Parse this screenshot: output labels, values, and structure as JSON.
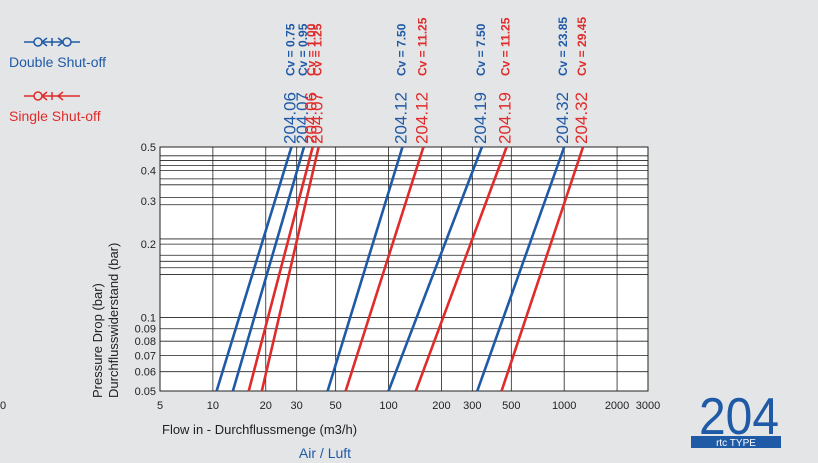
{
  "legend": {
    "double": {
      "label": "Double Shut-off",
      "color": "#1f5aa6",
      "icon": "double-shutoff-valve-icon"
    },
    "single": {
      "label": "Single Shut-off",
      "color": "#e02b2b",
      "icon": "single-shutoff-valve-icon"
    }
  },
  "brand": {
    "number": "204",
    "sub": "rtc TYPE",
    "color": "#1f5aa6"
  },
  "left_edge_label": "0",
  "chart_data": {
    "type": "line",
    "xscale": "log",
    "yscale": "log",
    "xlim": [
      5,
      3000
    ],
    "ylim": [
      0.05,
      0.5
    ],
    "xlabel": "Flow in - Durchflussmenge (m3/h)",
    "subtitle": "Air / Luft",
    "ylabel": [
      "Pressure Drop (bar)",
      "Durchflusswiderstand (bar)"
    ],
    "x_ticks": [
      5,
      10,
      20,
      30,
      50,
      100,
      200,
      300,
      500,
      1000,
      2000,
      3000
    ],
    "y_ticks": [
      0.05,
      0.06,
      0.07,
      0.08,
      0.09,
      0.1,
      0.2,
      0.3,
      0.4,
      0.5
    ],
    "x_grid": [
      5,
      10,
      20,
      30,
      50,
      100,
      200,
      300,
      500,
      1000,
      2000,
      3000
    ],
    "y_grid": [
      0.05,
      0.06,
      0.07,
      0.08,
      0.09,
      0.1,
      0.15,
      0.16,
      0.17,
      0.18,
      0.2,
      0.21,
      0.29,
      0.31,
      0.35,
      0.37,
      0.4,
      0.42,
      0.44,
      0.46,
      0.5
    ],
    "series": [
      {
        "name": "204.06",
        "cv": "Cv = 0.75",
        "type": "double",
        "x": [
          10.5,
          28
        ],
        "y": [
          0.05,
          0.5
        ]
      },
      {
        "name": "204.07",
        "cv": "Cv = 0.95",
        "type": "double",
        "x": [
          13,
          33
        ],
        "y": [
          0.05,
          0.5
        ]
      },
      {
        "name": "204.06",
        "cv": "Cv = 1.00",
        "type": "single",
        "x": [
          16,
          37
        ],
        "y": [
          0.05,
          0.5
        ]
      },
      {
        "name": "204.07",
        "cv": "Cv = 1.25",
        "type": "single",
        "x": [
          19,
          40
        ],
        "y": [
          0.05,
          0.5
        ]
      },
      {
        "name": "204.12",
        "cv": "Cv = 7.50",
        "type": "double",
        "x": [
          45,
          120
        ],
        "y": [
          0.05,
          0.5
        ]
      },
      {
        "name": "204.12",
        "cv": "Cv = 11.25",
        "type": "single",
        "x": [
          57,
          158
        ],
        "y": [
          0.05,
          0.5
        ]
      },
      {
        "name": "204.19",
        "cv": "Cv = 7.50",
        "type": "double",
        "x": [
          100,
          340
        ],
        "y": [
          0.05,
          0.5
        ]
      },
      {
        "name": "204.19",
        "cv": "Cv = 11.25",
        "type": "single",
        "x": [
          143,
          470
        ],
        "y": [
          0.05,
          0.5
        ]
      },
      {
        "name": "204.32",
        "cv": "Cv = 23.85",
        "type": "double",
        "x": [
          320,
          1000
        ],
        "y": [
          0.05,
          0.5
        ]
      },
      {
        "name": "204.32",
        "cv": "Cv = 29.45",
        "type": "single",
        "x": [
          440,
          1280
        ],
        "y": [
          0.05,
          0.5
        ]
      }
    ]
  }
}
